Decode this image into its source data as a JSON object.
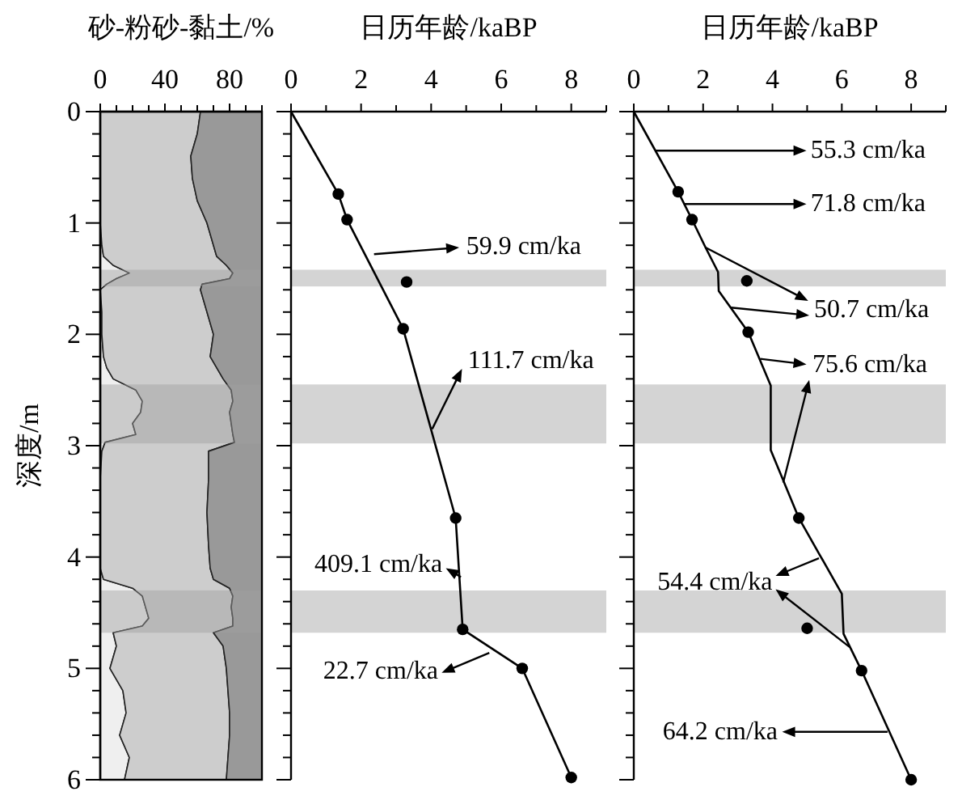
{
  "chart_data": [
    {
      "type": "area",
      "stacked": true,
      "orientation": "horizontal",
      "xlabel": "砂-粉砂-黏土/%",
      "ylabel": "深度/m",
      "x": [
        0,
        0.2,
        0.4,
        0.6,
        0.8,
        1.0,
        1.2,
        1.3,
        1.38,
        1.45,
        1.5,
        1.55,
        1.6,
        1.8,
        2.0,
        2.2,
        2.3,
        2.4,
        2.5,
        2.6,
        2.7,
        2.8,
        2.9,
        2.97,
        3.05,
        3.3,
        3.6,
        3.9,
        4.1,
        4.2,
        4.28,
        4.35,
        4.45,
        4.55,
        4.62,
        4.68,
        4.8,
        5.0,
        5.2,
        5.4,
        5.6,
        5.8,
        6.0
      ],
      "series": [
        {
          "color": "#efefef",
          "values": [
            0,
            0,
            0,
            0,
            0,
            0,
            1,
            2,
            8,
            18,
            10,
            4,
            0,
            1,
            1,
            2,
            4,
            8,
            22,
            26,
            25,
            20,
            22,
            3,
            1,
            0,
            0,
            0,
            0,
            2,
            20,
            26,
            28,
            30,
            26,
            8,
            10,
            6,
            14,
            16,
            12,
            18,
            15
          ]
        },
        {
          "color": "#cdcdcd",
          "values": [
            62,
            60,
            56,
            57,
            60,
            66,
            69,
            70,
            70,
            64,
            70,
            59,
            62,
            65,
            69,
            66,
            68,
            68,
            59,
            56,
            55,
            61,
            60,
            80,
            66,
            67,
            66,
            67,
            68,
            68,
            60,
            56,
            53,
            52,
            56,
            62,
            66,
            72,
            65,
            64,
            68,
            61,
            63
          ]
        },
        {
          "color": "#999999",
          "values": [
            38,
            40,
            44,
            43,
            40,
            34,
            30,
            28,
            22,
            18,
            20,
            37,
            38,
            34,
            30,
            32,
            28,
            24,
            19,
            18,
            20,
            19,
            18,
            17,
            33,
            33,
            34,
            33,
            32,
            30,
            20,
            18,
            19,
            18,
            18,
            30,
            24,
            22,
            21,
            20,
            20,
            21,
            22
          ]
        }
      ],
      "xlim": [
        0,
        100
      ],
      "xticks": [
        0,
        {
          "value": 10,
          "label": null
        },
        {
          "value": 20,
          "label": null
        },
        {
          "value": 30,
          "label": null
        },
        40,
        {
          "value": 50,
          "label": null
        },
        {
          "value": 60,
          "label": null
        },
        {
          "value": 70,
          "label": null
        },
        80,
        {
          "value": 90,
          "label": null
        },
        {
          "value": 100,
          "label": null
        }
      ],
      "ylim": [
        6,
        0
      ],
      "yticks": [
        0,
        {
          "value": 0.2,
          "label": null
        },
        {
          "value": 0.4,
          "label": null
        },
        {
          "value": 0.6,
          "label": null
        },
        {
          "value": 0.8,
          "label": null
        },
        1,
        {
          "value": 1.2,
          "label": null
        },
        {
          "value": 1.4,
          "label": null
        },
        {
          "value": 1.6,
          "label": null
        },
        {
          "value": 1.8,
          "label": null
        },
        2,
        {
          "value": 2.2,
          "label": null
        },
        {
          "value": 2.4,
          "label": null
        },
        {
          "value": 2.6,
          "label": null
        },
        {
          "value": 2.8,
          "label": null
        },
        3,
        {
          "value": 3.2,
          "label": null
        },
        {
          "value": 3.4,
          "label": null
        },
        {
          "value": 3.6,
          "label": null
        },
        {
          "value": 3.8,
          "label": null
        },
        4,
        {
          "value": 4.2,
          "label": null
        },
        {
          "value": 4.4,
          "label": null
        },
        {
          "value": 4.6,
          "label": null
        },
        {
          "value": 4.8,
          "label": null
        },
        5,
        {
          "value": 5.2,
          "label": null
        },
        {
          "value": 5.4,
          "label": null
        },
        {
          "value": 5.6,
          "label": null
        },
        {
          "value": 5.8,
          "label": null
        },
        6
      ],
      "bands": [
        {
          "axis": "y",
          "from": 1.42,
          "to": 1.57,
          "color": "#a0a0a0"
        },
        {
          "axis": "y",
          "from": 2.45,
          "to": 2.98,
          "color": "#a0a0a0"
        },
        {
          "axis": "y",
          "from": 4.3,
          "to": 4.68,
          "color": "#a0a0a0"
        }
      ]
    },
    {
      "type": "line",
      "xlabel": "日历年龄/kaBP",
      "tick_labels": "x",
      "series": [
        {
          "type": "line",
          "color": "#000000",
          "marker": "none",
          "x": [
            0,
            1.35,
            1.6,
            3.2,
            4.7,
            4.9,
            6.6,
            8.0
          ],
          "values": [
            0,
            0.74,
            0.97,
            1.95,
            3.65,
            4.65,
            5.0,
            5.98
          ]
        },
        {
          "type": "scatter",
          "color": "#000000",
          "marker": "circle",
          "x": [
            1.35,
            1.6,
            3.3,
            3.2,
            4.7,
            4.9,
            6.6,
            8.0
          ],
          "values": [
            0.74,
            0.97,
            1.53,
            1.95,
            3.65,
            4.65,
            5.0,
            5.98
          ]
        }
      ],
      "xlim": [
        0,
        9
      ],
      "xticks": [
        0,
        {
          "value": 1,
          "label": null
        },
        2,
        {
          "value": 3,
          "label": null
        },
        4,
        {
          "value": 5,
          "label": null
        },
        6,
        {
          "value": 7,
          "label": null
        },
        8,
        {
          "value": 9,
          "label": null
        }
      ],
      "ylim": [
        6,
        0
      ],
      "yticks": [
        0,
        {
          "value": 0.2,
          "label": null
        },
        {
          "value": 0.4,
          "label": null
        },
        {
          "value": 0.6,
          "label": null
        },
        {
          "value": 0.8,
          "label": null
        },
        1,
        {
          "value": 1.2,
          "label": null
        },
        {
          "value": 1.4,
          "label": null
        },
        {
          "value": 1.6,
          "label": null
        },
        {
          "value": 1.8,
          "label": null
        },
        2,
        {
          "value": 2.2,
          "label": null
        },
        {
          "value": 2.4,
          "label": null
        },
        {
          "value": 2.6,
          "label": null
        },
        {
          "value": 2.8,
          "label": null
        },
        3,
        {
          "value": 3.2,
          "label": null
        },
        {
          "value": 3.4,
          "label": null
        },
        {
          "value": 3.6,
          "label": null
        },
        {
          "value": 3.8,
          "label": null
        },
        4,
        {
          "value": 4.2,
          "label": null
        },
        {
          "value": 4.4,
          "label": null
        },
        {
          "value": 4.6,
          "label": null
        },
        {
          "value": 4.8,
          "label": null
        },
        5,
        {
          "value": 5.2,
          "label": null
        },
        {
          "value": 5.4,
          "label": null
        },
        {
          "value": 5.6,
          "label": null
        },
        {
          "value": 5.8,
          "label": null
        },
        6
      ],
      "bands": [
        {
          "axis": "y",
          "from": 1.42,
          "to": 1.57,
          "color": "#d4d4d4"
        },
        {
          "axis": "y",
          "from": 2.45,
          "to": 2.98,
          "color": "#d4d4d4"
        },
        {
          "axis": "y",
          "from": 4.3,
          "to": 4.68,
          "color": "#d4d4d4"
        }
      ],
      "annotations": [
        "59.9 cm/ka",
        "111.7 cm/ka",
        "409.1 cm/ka",
        "22.7 cm/ka"
      ]
    },
    {
      "type": "line",
      "xlabel": "日历年龄/kaBP",
      "tick_labels": "x",
      "series": [
        {
          "type": "line",
          "color": "#000000",
          "marker": "none",
          "x": [
            0,
            1.28,
            1.68,
            2.07,
            2.43,
            2.45,
            3.3,
            3.95,
            3.95,
            4.76,
            6.0,
            6.05,
            6.57,
            8.0
          ],
          "values": [
            0,
            0.72,
            0.97,
            1.22,
            1.44,
            1.61,
            1.98,
            2.46,
            3.04,
            3.65,
            4.33,
            4.69,
            5.02,
            6.0
          ]
        },
        {
          "type": "scatter",
          "color": "#000000",
          "marker": "circle",
          "x": [
            1.28,
            1.68,
            3.26,
            3.3,
            4.76,
            5.0,
            6.57,
            8.0
          ],
          "values": [
            0.72,
            0.97,
            1.52,
            1.98,
            3.65,
            4.64,
            5.02,
            6.0
          ]
        }
      ],
      "xlim": [
        0,
        9
      ],
      "xticks": [
        0,
        {
          "value": 1,
          "label": null
        },
        2,
        {
          "value": 3,
          "label": null
        },
        4,
        {
          "value": 5,
          "label": null
        },
        6,
        {
          "value": 7,
          "label": null
        },
        8,
        {
          "value": 9,
          "label": null
        }
      ],
      "ylim": [
        6,
        0
      ],
      "yticks": [
        0,
        {
          "value": 0.2,
          "label": null
        },
        {
          "value": 0.4,
          "label": null
        },
        {
          "value": 0.6,
          "label": null
        },
        {
          "value": 0.8,
          "label": null
        },
        1,
        {
          "value": 1.2,
          "label": null
        },
        {
          "value": 1.4,
          "label": null
        },
        {
          "value": 1.6,
          "label": null
        },
        {
          "value": 1.8,
          "label": null
        },
        2,
        {
          "value": 2.2,
          "label": null
        },
        {
          "value": 2.4,
          "label": null
        },
        {
          "value": 2.6,
          "label": null
        },
        {
          "value": 2.8,
          "label": null
        },
        3,
        {
          "value": 3.2,
          "label": null
        },
        {
          "value": 3.4,
          "label": null
        },
        {
          "value": 3.6,
          "label": null
        },
        {
          "value": 3.8,
          "label": null
        },
        4,
        {
          "value": 4.2,
          "label": null
        },
        {
          "value": 4.4,
          "label": null
        },
        {
          "value": 4.6,
          "label": null
        },
        {
          "value": 4.8,
          "label": null
        },
        5,
        {
          "value": 5.2,
          "label": null
        },
        {
          "value": 5.4,
          "label": null
        },
        {
          "value": 5.6,
          "label": null
        },
        {
          "value": 5.8,
          "label": null
        },
        6
      ],
      "bands": [
        {
          "axis": "y",
          "from": 1.42,
          "to": 1.57,
          "color": "#d4d4d4"
        },
        {
          "axis": "y",
          "from": 2.45,
          "to": 2.98,
          "color": "#d4d4d4"
        },
        {
          "axis": "y",
          "from": 4.3,
          "to": 4.68,
          "color": "#d4d4d4"
        }
      ],
      "annotations": [
        "55.3 cm/ka",
        "71.8 cm/ka",
        "50.7 cm/ka",
        "75.6 cm/ka",
        "54.4 cm/ka",
        "64.2 cm/ka"
      ]
    }
  ]
}
